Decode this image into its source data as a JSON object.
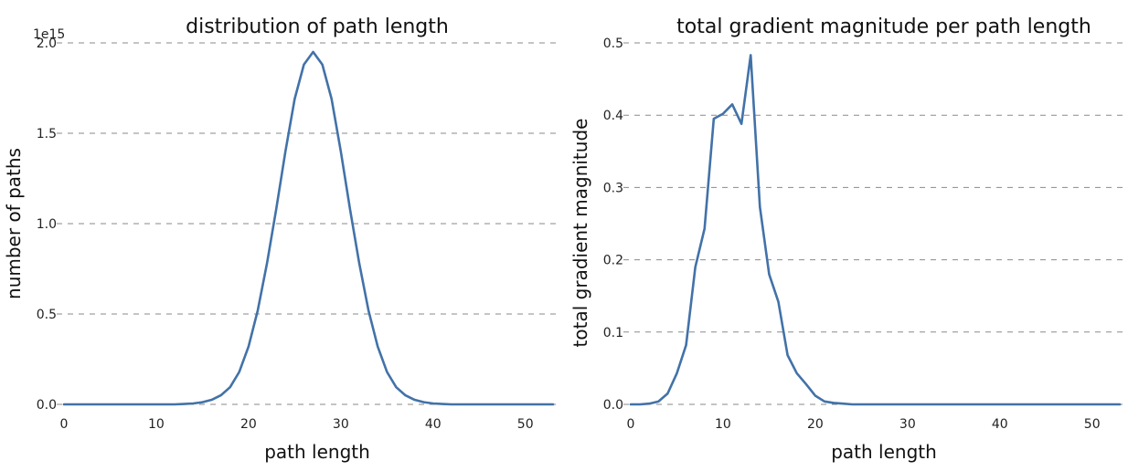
{
  "chart_data": [
    {
      "type": "line",
      "title": "distribution of path length",
      "xlabel": "path length",
      "ylabel": "number of paths",
      "y_offset_label": "1e15",
      "xlim": [
        0,
        53
      ],
      "ylim": [
        0,
        2.0
      ],
      "x_ticks": [
        "0",
        "10",
        "20",
        "30",
        "40",
        "50"
      ],
      "y_ticks": [
        "0.0",
        "0.5",
        "1.0",
        "1.5",
        "2.0"
      ],
      "grid": "horizontal dashed",
      "line_color": "#4272a8",
      "series": [
        {
          "x": [
            0,
            1,
            2,
            3,
            4,
            5,
            6,
            7,
            8,
            9,
            10,
            11,
            12,
            13,
            14,
            15,
            16,
            17,
            18,
            19,
            20,
            21,
            22,
            23,
            24,
            25,
            26,
            27,
            28,
            29,
            30,
            31,
            32,
            33,
            34,
            35,
            36,
            37,
            38,
            39,
            40,
            41,
            42,
            43,
            44,
            45,
            46,
            47,
            48,
            49,
            50,
            51,
            52,
            53
          ],
          "values": [
            0,
            0,
            0,
            0,
            0,
            0,
            0,
            0,
            0,
            0,
            0,
            0,
            0,
            0.002,
            0.005,
            0.012,
            0.025,
            0.05,
            0.095,
            0.18,
            0.32,
            0.52,
            0.78,
            1.08,
            1.4,
            1.69,
            1.88,
            1.95,
            1.88,
            1.69,
            1.4,
            1.08,
            0.78,
            0.52,
            0.32,
            0.18,
            0.095,
            0.05,
            0.025,
            0.012,
            0.005,
            0.002,
            0,
            0,
            0,
            0,
            0,
            0,
            0,
            0,
            0,
            0,
            0,
            0
          ]
        }
      ]
    },
    {
      "type": "line",
      "title": "total gradient magnitude per path length",
      "xlabel": "path length",
      "ylabel": "total gradient magnitude",
      "xlim": [
        0,
        53
      ],
      "ylim": [
        0,
        0.5
      ],
      "x_ticks": [
        "0",
        "10",
        "20",
        "30",
        "40",
        "50"
      ],
      "y_ticks": [
        "0.0",
        "0.1",
        "0.2",
        "0.3",
        "0.4",
        "0.5"
      ],
      "grid": "horizontal dashed",
      "line_color": "#4272a8",
      "series": [
        {
          "x": [
            0,
            1,
            2,
            3,
            4,
            5,
            6,
            7,
            8,
            9,
            10,
            11,
            12,
            13,
            14,
            15,
            16,
            17,
            18,
            19,
            20,
            21,
            22,
            23,
            24,
            25,
            26,
            27,
            28,
            29,
            30,
            31,
            32,
            33,
            34,
            35,
            36,
            37,
            38,
            39,
            40,
            41,
            42,
            43,
            44,
            45,
            46,
            47,
            48,
            49,
            50,
            51,
            52,
            53
          ],
          "values": [
            0,
            0,
            0.001,
            0.004,
            0.015,
            0.043,
            0.082,
            0.19,
            0.243,
            0.395,
            0.402,
            0.415,
            0.388,
            0.483,
            0.273,
            0.18,
            0.142,
            0.068,
            0.043,
            0.028,
            0.012,
            0.004,
            0.002,
            0.001,
            0,
            0,
            0,
            0,
            0,
            0,
            0,
            0,
            0,
            0,
            0,
            0,
            0,
            0,
            0,
            0,
            0,
            0,
            0,
            0,
            0,
            0,
            0,
            0,
            0,
            0,
            0,
            0,
            0,
            0
          ]
        }
      ]
    }
  ]
}
